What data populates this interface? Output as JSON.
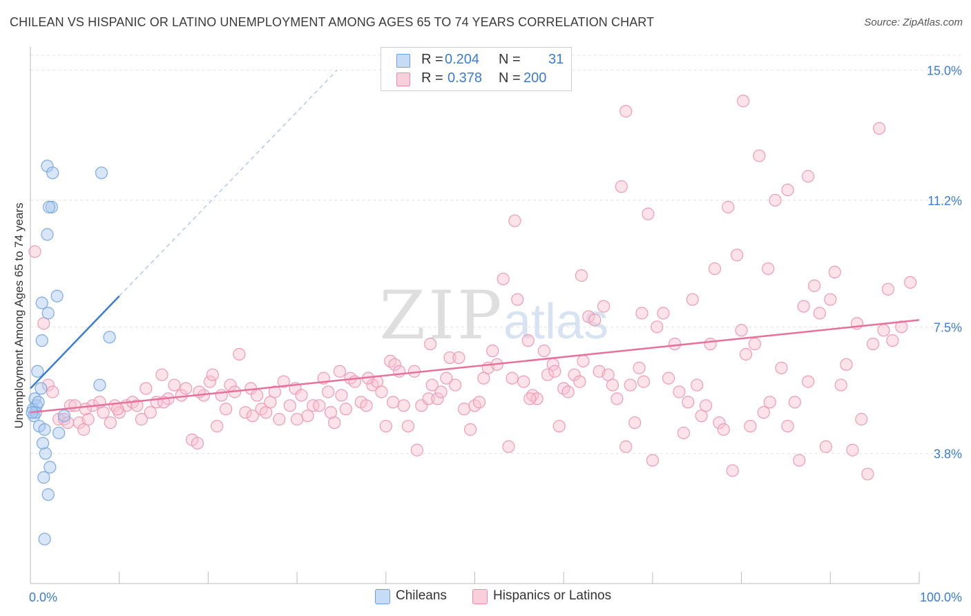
{
  "header": {
    "title": "CHILEAN VS HISPANIC OR LATINO UNEMPLOYMENT AMONG AGES 65 TO 74 YEARS CORRELATION CHART",
    "source_prefix": "Source: ",
    "source_name": "ZipAtlas.com"
  },
  "legend_top": {
    "rows": [
      {
        "r_label": "R = ",
        "r_value": "0.204",
        "n_label": "N = ",
        "n_value": "31",
        "color": "#a8c8f0",
        "border": "#6a9fe0"
      },
      {
        "r_label": "R = ",
        "r_value": "0.378",
        "n_label": "N = ",
        "n_value": "200",
        "color": "#f8c0d0",
        "border": "#ee8aa8"
      }
    ]
  },
  "legend_bottom": {
    "items": [
      {
        "label": "Chileans",
        "color": "#a8c8f0",
        "border": "#6a9fe0"
      },
      {
        "label": "Hispanics or Latinos",
        "color": "#f8c0d0",
        "border": "#ee8aa8"
      }
    ]
  },
  "watermark": {
    "zip": "ZIP",
    "atlas": "atlas"
  },
  "chart_data": {
    "type": "scatter",
    "title": "CHILEAN VS HISPANIC OR LATINO UNEMPLOYMENT AMONG AGES 65 TO 74 YEARS CORRELATION CHART",
    "xlabel": "",
    "ylabel": "Unemployment Among Ages 65 to 74 years",
    "xlim": [
      0,
      100
    ],
    "ylim": [
      0,
      15.8
    ],
    "x_tick_labels": [
      "0.0%",
      "100.0%"
    ],
    "y_ticks": [
      3.8,
      7.5,
      11.2,
      15.0
    ],
    "y_tick_labels": [
      "3.8%",
      "7.5%",
      "11.2%",
      "15.0%"
    ],
    "grid": true,
    "legend_position": "top-center",
    "colors": {
      "chileans": "#3a7bd5",
      "hispanics": "#e8709a",
      "chileans_fill": "#a8c8f0",
      "hispanics_fill": "#f8c0d0"
    },
    "series": [
      {
        "name": "Chileans",
        "r": 0.204,
        "n": 31,
        "trend": {
          "x0": 0,
          "y0": 5.7,
          "x1": 10,
          "y1": 8.4,
          "dashed_to_x": 34.5,
          "dashed_to_y": 15.0
        },
        "points": [
          [
            0.3,
            5.1
          ],
          [
            0.5,
            5.4
          ],
          [
            0.7,
            5.2
          ],
          [
            0.4,
            4.9
          ],
          [
            0.9,
            5.3
          ],
          [
            0.6,
            5.0
          ],
          [
            0.8,
            6.2
          ],
          [
            1.2,
            5.7
          ],
          [
            1.0,
            4.6
          ],
          [
            1.6,
            4.5
          ],
          [
            1.7,
            3.8
          ],
          [
            1.4,
            4.1
          ],
          [
            2.2,
            3.4
          ],
          [
            1.5,
            3.1
          ],
          [
            2.0,
            2.6
          ],
          [
            3.2,
            4.4
          ],
          [
            2.4,
            11.0
          ],
          [
            2.1,
            11.0
          ],
          [
            1.9,
            12.2
          ],
          [
            2.5,
            12.0
          ],
          [
            8.0,
            12.0
          ],
          [
            1.9,
            10.2
          ],
          [
            3.8,
            4.9
          ],
          [
            3.0,
            8.4
          ],
          [
            2.0,
            7.9
          ],
          [
            1.3,
            8.2
          ],
          [
            1.3,
            7.1
          ],
          [
            7.8,
            5.8
          ],
          [
            8.9,
            7.2
          ],
          [
            1.6,
            1.3
          ],
          [
            0.2,
            5.0
          ]
        ]
      },
      {
        "name": "Hispanics or Latinos",
        "r": 0.378,
        "n": 200,
        "trend": {
          "x0": 0,
          "y0": 5.0,
          "x1": 100,
          "y1": 7.7
        },
        "points": [
          [
            0.5,
            9.7
          ],
          [
            1.5,
            7.6
          ],
          [
            2.0,
            5.8
          ],
          [
            2.5,
            5.6
          ],
          [
            3.2,
            4.8
          ],
          [
            3.8,
            4.8
          ],
          [
            4.5,
            5.2
          ],
          [
            5.0,
            5.2
          ],
          [
            5.5,
            4.7
          ],
          [
            6.0,
            4.5
          ],
          [
            6.5,
            4.8
          ],
          [
            7.0,
            5.2
          ],
          [
            8.2,
            5.0
          ],
          [
            9.0,
            4.7
          ],
          [
            9.5,
            5.2
          ],
          [
            10.0,
            5.0
          ],
          [
            10.8,
            5.2
          ],
          [
            11.5,
            5.3
          ],
          [
            12.5,
            4.8
          ],
          [
            13.0,
            5.7
          ],
          [
            13.5,
            5.0
          ],
          [
            14.2,
            5.3
          ],
          [
            14.8,
            6.1
          ],
          [
            15.5,
            5.4
          ],
          [
            16.2,
            5.8
          ],
          [
            17.0,
            5.5
          ],
          [
            17.5,
            5.7
          ],
          [
            18.2,
            4.2
          ],
          [
            18.8,
            4.1
          ],
          [
            19.5,
            5.5
          ],
          [
            20.2,
            5.9
          ],
          [
            20.5,
            6.1
          ],
          [
            21.0,
            4.6
          ],
          [
            22.0,
            5.1
          ],
          [
            22.5,
            5.8
          ],
          [
            23.0,
            5.6
          ],
          [
            23.5,
            6.7
          ],
          [
            24.2,
            5.0
          ],
          [
            24.8,
            5.7
          ],
          [
            25.5,
            5.5
          ],
          [
            26.0,
            5.1
          ],
          [
            26.5,
            5.0
          ],
          [
            27.5,
            5.6
          ],
          [
            28.0,
            4.8
          ],
          [
            28.5,
            5.9
          ],
          [
            29.2,
            5.2
          ],
          [
            29.8,
            5.7
          ],
          [
            30.5,
            5.5
          ],
          [
            31.2,
            4.9
          ],
          [
            31.8,
            5.2
          ],
          [
            32.5,
            5.2
          ],
          [
            33.0,
            6.0
          ],
          [
            33.5,
            5.6
          ],
          [
            34.2,
            4.7
          ],
          [
            34.8,
            6.2
          ],
          [
            35.5,
            5.1
          ],
          [
            36.0,
            6.0
          ],
          [
            36.5,
            5.9
          ],
          [
            37.2,
            5.3
          ],
          [
            37.8,
            5.2
          ],
          [
            38.5,
            5.8
          ],
          [
            39.0,
            5.9
          ],
          [
            39.5,
            5.6
          ],
          [
            40.0,
            4.6
          ],
          [
            40.5,
            6.5
          ],
          [
            41.0,
            6.4
          ],
          [
            41.5,
            6.2
          ],
          [
            42.0,
            5.2
          ],
          [
            42.5,
            4.6
          ],
          [
            43.2,
            6.2
          ],
          [
            43.5,
            3.9
          ],
          [
            44.0,
            5.2
          ],
          [
            44.8,
            5.4
          ],
          [
            45.2,
            5.8
          ],
          [
            45.8,
            5.4
          ],
          [
            46.2,
            5.6
          ],
          [
            46.8,
            6.0
          ],
          [
            47.2,
            6.6
          ],
          [
            47.8,
            5.8
          ],
          [
            48.2,
            6.6
          ],
          [
            48.8,
            5.1
          ],
          [
            49.5,
            4.5
          ],
          [
            50.0,
            5.2
          ],
          [
            50.5,
            5.3
          ],
          [
            51.0,
            6.0
          ],
          [
            51.5,
            6.3
          ],
          [
            52.0,
            6.8
          ],
          [
            52.5,
            6.4
          ],
          [
            53.2,
            8.9
          ],
          [
            53.8,
            4.0
          ],
          [
            54.2,
            6.0
          ],
          [
            54.8,
            8.3
          ],
          [
            55.5,
            5.9
          ],
          [
            56.0,
            7.1
          ],
          [
            56.5,
            5.5
          ],
          [
            57.0,
            5.4
          ],
          [
            57.8,
            6.8
          ],
          [
            58.2,
            6.1
          ],
          [
            58.8,
            6.4
          ],
          [
            59.5,
            4.6
          ],
          [
            60.0,
            5.7
          ],
          [
            60.5,
            5.6
          ],
          [
            61.2,
            6.1
          ],
          [
            61.8,
            5.9
          ],
          [
            62.2,
            6.5
          ],
          [
            62.8,
            7.8
          ],
          [
            63.5,
            7.7
          ],
          [
            64.0,
            6.2
          ],
          [
            64.5,
            8.1
          ],
          [
            65.0,
            6.1
          ],
          [
            65.5,
            5.8
          ],
          [
            66.0,
            5.4
          ],
          [
            66.5,
            11.6
          ],
          [
            67.0,
            4.0
          ],
          [
            67.5,
            5.8
          ],
          [
            68.0,
            4.7
          ],
          [
            68.5,
            6.3
          ],
          [
            69.0,
            5.9
          ],
          [
            69.5,
            10.8
          ],
          [
            70.0,
            3.6
          ],
          [
            70.5,
            7.5
          ],
          [
            71.2,
            7.9
          ],
          [
            71.8,
            6.0
          ],
          [
            72.5,
            7.0
          ],
          [
            73.0,
            5.6
          ],
          [
            73.5,
            4.4
          ],
          [
            74.0,
            5.3
          ],
          [
            75.0,
            5.8
          ],
          [
            75.5,
            4.9
          ],
          [
            76.0,
            5.2
          ],
          [
            76.5,
            7.0
          ],
          [
            77.0,
            9.2
          ],
          [
            77.5,
            4.7
          ],
          [
            78.0,
            4.5
          ],
          [
            78.5,
            11.0
          ],
          [
            79.0,
            3.3
          ],
          [
            79.5,
            9.6
          ],
          [
            80.0,
            7.4
          ],
          [
            80.5,
            6.7
          ],
          [
            81.0,
            4.6
          ],
          [
            81.5,
            7.0
          ],
          [
            82.0,
            12.5
          ],
          [
            82.5,
            5.0
          ],
          [
            83.2,
            5.3
          ],
          [
            83.8,
            11.2
          ],
          [
            84.5,
            6.3
          ],
          [
            85.2,
            4.6
          ],
          [
            86.0,
            5.3
          ],
          [
            86.5,
            3.6
          ],
          [
            87.0,
            8.1
          ],
          [
            87.5,
            5.9
          ],
          [
            88.2,
            8.7
          ],
          [
            88.8,
            7.9
          ],
          [
            89.5,
            4.0
          ],
          [
            90.0,
            8.3
          ],
          [
            90.5,
            9.1
          ],
          [
            91.2,
            5.8
          ],
          [
            91.8,
            6.4
          ],
          [
            92.5,
            3.9
          ],
          [
            93.0,
            7.6
          ],
          [
            93.5,
            4.8
          ],
          [
            94.2,
            3.2
          ],
          [
            94.8,
            7.0
          ],
          [
            95.5,
            13.3
          ],
          [
            96.0,
            7.4
          ],
          [
            96.5,
            8.6
          ],
          [
            97.0,
            7.1
          ],
          [
            98.0,
            7.5
          ],
          [
            99.0,
            8.8
          ],
          [
            80.2,
            14.1
          ],
          [
            67.0,
            13.8
          ],
          [
            85.2,
            11.5
          ],
          [
            87.5,
            11.9
          ],
          [
            83.0,
            9.2
          ],
          [
            74.5,
            8.3
          ],
          [
            68.8,
            7.9
          ],
          [
            62.0,
            9.0
          ],
          [
            59.0,
            6.2
          ],
          [
            56.2,
            5.4
          ],
          [
            54.5,
            10.6
          ],
          [
            45.0,
            7.0
          ],
          [
            40.8,
            5.3
          ],
          [
            38.0,
            6.0
          ],
          [
            35.0,
            5.5
          ],
          [
            33.8,
            5.0
          ],
          [
            30.0,
            4.8
          ],
          [
            27.0,
            5.3
          ],
          [
            25.0,
            4.9
          ],
          [
            21.5,
            5.5
          ],
          [
            19.0,
            5.6
          ],
          [
            15.0,
            5.3
          ],
          [
            12.0,
            5.2
          ],
          [
            9.8,
            5.1
          ],
          [
            7.8,
            5.3
          ],
          [
            6.2,
            5.1
          ],
          [
            4.2,
            4.7
          ]
        ]
      }
    ]
  }
}
